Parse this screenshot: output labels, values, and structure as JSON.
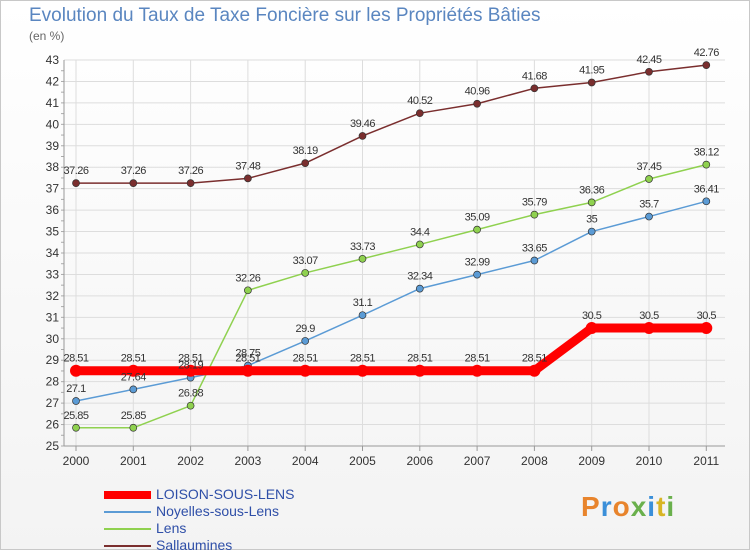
{
  "header": {
    "title": "Evolution du Taux de Taxe Foncière sur les Propriétés Bâties",
    "subtitle": "(en %)"
  },
  "logo": {
    "text": "Proxiti",
    "colors": [
      "#e8842c",
      "#3a8fd9",
      "#e8842c",
      "#6ab04c",
      "#3a8fd9",
      "#d8b524",
      "#6ab04c"
    ]
  },
  "chart_data": {
    "type": "line",
    "x": [
      "2000",
      "2001",
      "2002",
      "2003",
      "2004",
      "2005",
      "2006",
      "2007",
      "2008",
      "2009",
      "2010",
      "2011"
    ],
    "ylim": [
      25,
      43
    ],
    "yticks": [
      25,
      26,
      27,
      28,
      29,
      30,
      31,
      32,
      33,
      34,
      35,
      36,
      37,
      38,
      39,
      40,
      41,
      42,
      43
    ],
    "grid": true,
    "legend_position": "bottom-left",
    "series": [
      {
        "name": "LOISON-SOUS-LENS",
        "color": "#ff0000",
        "values": [
          28.51,
          28.51,
          28.51,
          28.51,
          28.51,
          28.51,
          28.51,
          28.51,
          28.51,
          30.5,
          30.5,
          30.5
        ],
        "labels": [
          "28.51",
          "28.51",
          "28.51",
          "28.51",
          "28.51",
          "28.51",
          "28.51",
          "28.51",
          "28.51",
          "30.5",
          "30.5",
          "30.5"
        ]
      },
      {
        "name": "Noyelles-sous-Lens",
        "color": "#5b9bd5",
        "values": [
          27.1,
          27.64,
          28.19,
          28.75,
          29.9,
          31.1,
          32.34,
          32.99,
          33.65,
          35,
          35.7,
          36.41
        ],
        "labels": [
          "27.1",
          "27.64",
          "28.19",
          "28.75",
          "29.9",
          "31.1",
          "32.34",
          "32.99",
          "33.65",
          "35",
          "35.7",
          "36.41"
        ]
      },
      {
        "name": "Lens",
        "color": "#8fd14f",
        "values": [
          25.85,
          25.85,
          26.88,
          32.26,
          33.07,
          33.73,
          34.4,
          35.09,
          35.79,
          36.36,
          37.45,
          38.12
        ],
        "labels": [
          "25.85",
          "25.85",
          "26.88",
          "32.26",
          "33.07",
          "33.73",
          "34.4",
          "35.09",
          "35.79",
          "36.36",
          "37.45",
          "38.12"
        ]
      },
      {
        "name": "Sallaumines",
        "color": "#7a2e2e",
        "values": [
          37.26,
          37.26,
          37.26,
          37.48,
          38.19,
          39.46,
          40.52,
          40.96,
          41.68,
          41.95,
          42.45,
          42.76
        ],
        "labels": [
          "37.26",
          "37.26",
          "37.26",
          "37.48",
          "38.19",
          "39.46",
          "40.52",
          "40.96",
          "41.68",
          "41.95",
          "42.45",
          "42.76"
        ]
      }
    ]
  }
}
